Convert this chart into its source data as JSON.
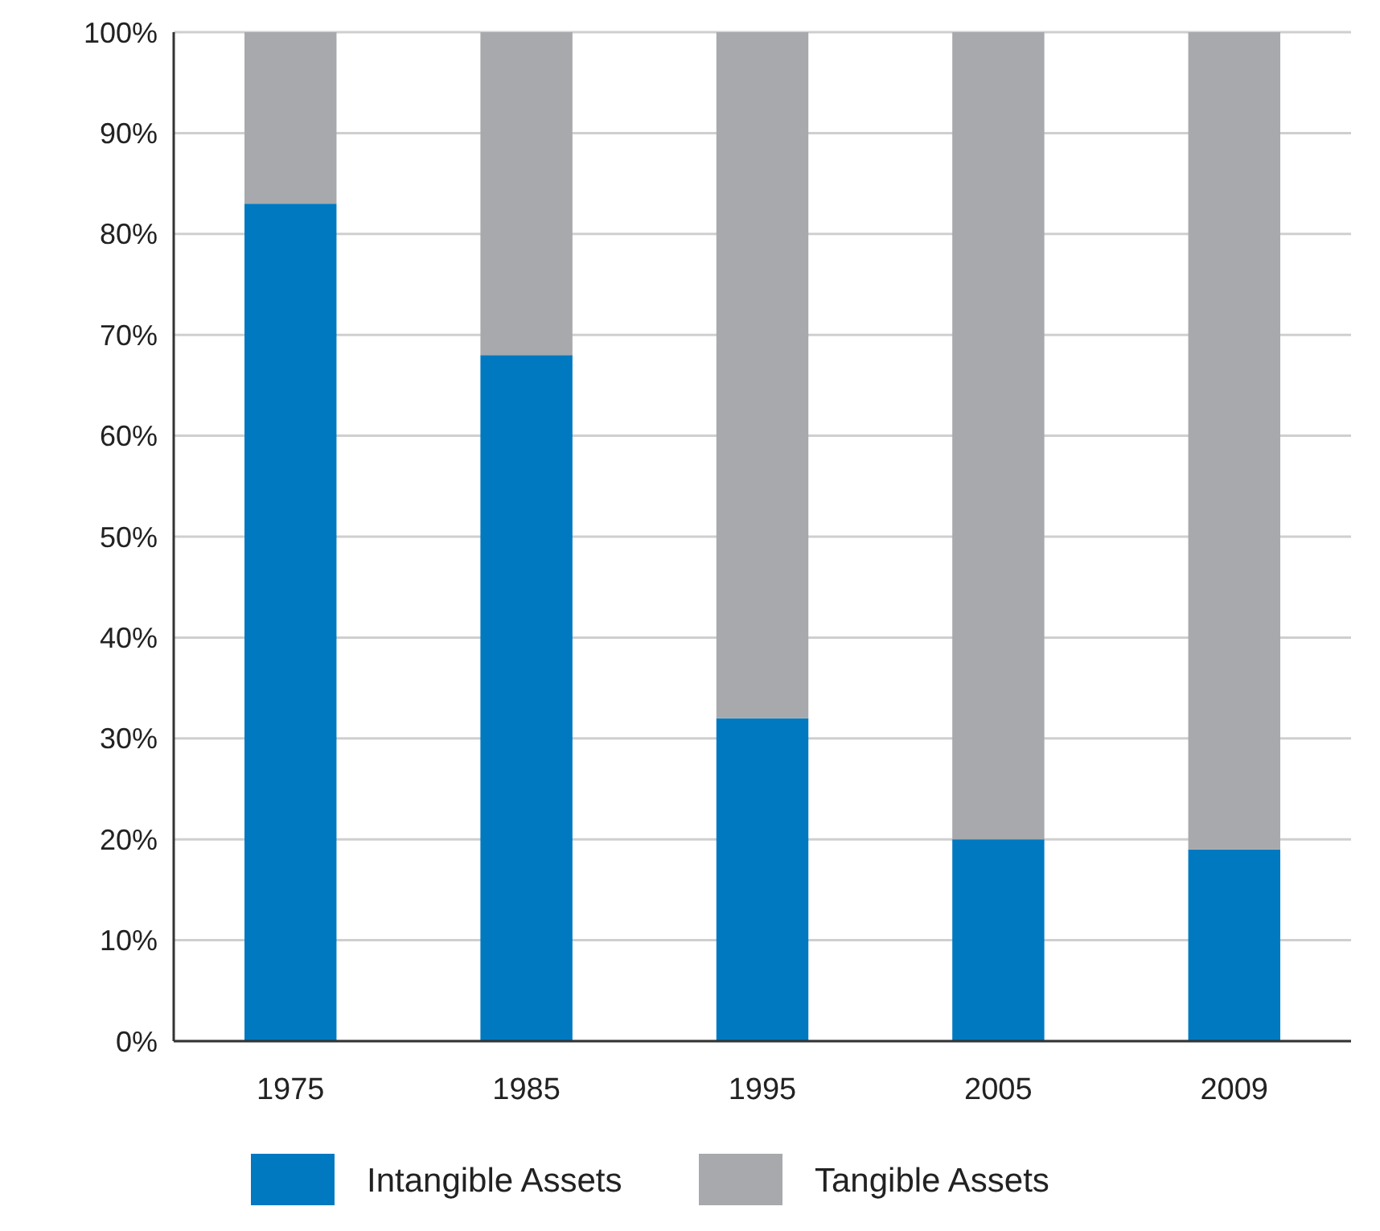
{
  "chart_data": {
    "type": "bar",
    "stacked": true,
    "categories": [
      "1975",
      "1985",
      "1995",
      "2005",
      "2009"
    ],
    "series": [
      {
        "name": "Intangible Assets",
        "color": "#0079c1",
        "values": [
          83,
          68,
          32,
          20,
          19
        ]
      },
      {
        "name": "Tangible Assets",
        "color": "#a7a9ac",
        "values": [
          17,
          32,
          68,
          80,
          81
        ]
      }
    ],
    "ylim": [
      0,
      100
    ],
    "yticks": [
      {
        "value": 0,
        "label": "0%"
      },
      {
        "value": 10,
        "label": "10%"
      },
      {
        "value": 20,
        "label": "20%"
      },
      {
        "value": 30,
        "label": "30%"
      },
      {
        "value": 40,
        "label": "40%"
      },
      {
        "value": 50,
        "label": "50%"
      },
      {
        "value": 60,
        "label": "60%"
      },
      {
        "value": 70,
        "label": "70%"
      },
      {
        "value": 80,
        "label": "80%"
      },
      {
        "value": 90,
        "label": "90%"
      },
      {
        "value": 100,
        "label": "100%"
      }
    ],
    "grid": "y",
    "legend": "bottom"
  }
}
